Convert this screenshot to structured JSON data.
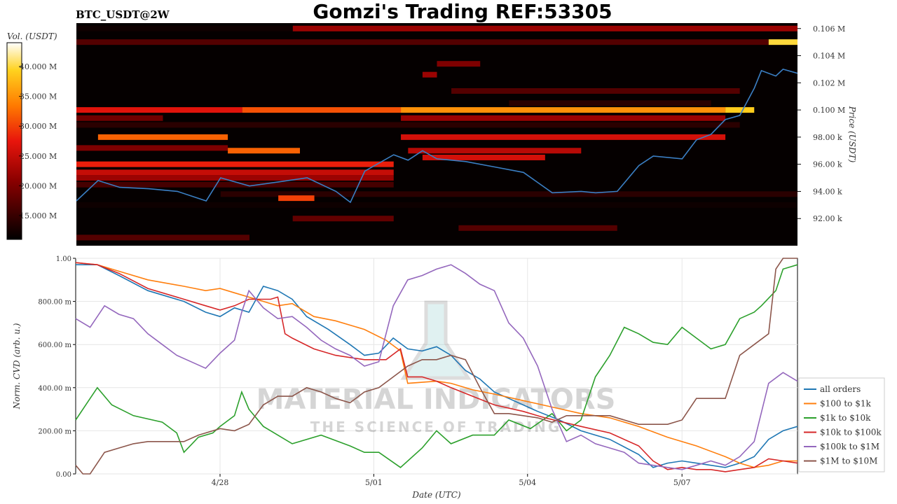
{
  "title": "Gomzi's Trading REF:53305",
  "watermark": {
    "line1": "MATERIAL INDICATORS",
    "line2": "THE SCIENCE OF TRADING"
  },
  "chart_data": [
    {
      "type": "heatmap",
      "pair_label": "BTC_USDT@2W",
      "ylabel": "Price (USDT)",
      "yticks": [
        "0.106 M",
        "0.104 M",
        "0.102 M",
        "0.100 M",
        "98.00 k",
        "96.00 k",
        "94.00 k",
        "92.00 k"
      ],
      "ytick_values": [
        106000,
        104000,
        102000,
        100000,
        98000,
        96000,
        94000,
        92000
      ],
      "ylim": [
        90000,
        106400
      ],
      "colorbar": {
        "label": "Vol. (USDT)",
        "ticks": [
          "40.000 M",
          "35.000 M",
          "30.000 M",
          "25.000 M",
          "20.000 M",
          "15.000 M"
        ],
        "tick_values": [
          40,
          35,
          30,
          25,
          20,
          15
        ],
        "range": [
          11,
          44
        ],
        "colors": [
          "#000000",
          "#8b0000",
          "#e8150c",
          "#ff7a00",
          "#ffd21e",
          "#ffffff"
        ]
      },
      "price_series": {
        "color": "#3b7fc4",
        "x": [
          0,
          0.03,
          0.06,
          0.1,
          0.14,
          0.18,
          0.2,
          0.24,
          0.28,
          0.32,
          0.36,
          0.38,
          0.4,
          0.44,
          0.46,
          0.48,
          0.5,
          0.54,
          0.58,
          0.62,
          0.66,
          0.7,
          0.72,
          0.75,
          0.78,
          0.8,
          0.84,
          0.86,
          0.88,
          0.9,
          0.92,
          0.94,
          0.95,
          0.97,
          0.98,
          1.0
        ],
        "y": [
          93300,
          94800,
          94300,
          94200,
          94000,
          93300,
          95000,
          94400,
          94700,
          95000,
          94000,
          93200,
          95500,
          96700,
          96300,
          97000,
          96400,
          96200,
          95800,
          95400,
          93900,
          94000,
          93900,
          94000,
          95900,
          96600,
          96400,
          97800,
          98200,
          99300,
          99600,
          101600,
          102900,
          102500,
          103000,
          102700
        ]
      },
      "bands": [
        {
          "price": 106000,
          "x0": 0.3,
          "x1": 1.0,
          "vol": 22
        },
        {
          "price": 106000,
          "x0": 0.0,
          "x1": 0.3,
          "vol": 12
        },
        {
          "price": 105000,
          "x0": 0.0,
          "x1": 0.96,
          "vol": 17
        },
        {
          "price": 105000,
          "x0": 0.96,
          "x1": 1.0,
          "vol": 40
        },
        {
          "price": 103400,
          "x0": 0.5,
          "x1": 0.56,
          "vol": 20
        },
        {
          "price": 102600,
          "x0": 0.48,
          "x1": 0.5,
          "vol": 22
        },
        {
          "price": 101400,
          "x0": 0.52,
          "x1": 0.92,
          "vol": 17
        },
        {
          "price": 100500,
          "x0": 0.6,
          "x1": 0.88,
          "vol": 14
        },
        {
          "price": 100000,
          "x0": 0.0,
          "x1": 0.23,
          "vol": 27
        },
        {
          "price": 100000,
          "x0": 0.23,
          "x1": 0.45,
          "vol": 31
        },
        {
          "price": 100000,
          "x0": 0.45,
          "x1": 0.9,
          "vol": 35
        },
        {
          "price": 100000,
          "x0": 0.9,
          "x1": 0.94,
          "vol": 39
        },
        {
          "price": 99400,
          "x0": 0.0,
          "x1": 0.12,
          "vol": 19
        },
        {
          "price": 99400,
          "x0": 0.45,
          "x1": 0.9,
          "vol": 22
        },
        {
          "price": 98900,
          "x0": 0.0,
          "x1": 0.92,
          "vol": 14
        },
        {
          "price": 98000,
          "x0": 0.03,
          "x1": 0.21,
          "vol": 32
        },
        {
          "price": 98000,
          "x0": 0.45,
          "x1": 0.9,
          "vol": 26
        },
        {
          "price": 97200,
          "x0": 0.0,
          "x1": 0.21,
          "vol": 20
        },
        {
          "price": 97000,
          "x0": 0.21,
          "x1": 0.31,
          "vol": 32
        },
        {
          "price": 97000,
          "x0": 0.46,
          "x1": 0.7,
          "vol": 24
        },
        {
          "price": 96500,
          "x0": 0.48,
          "x1": 0.65,
          "vol": 26
        },
        {
          "price": 96000,
          "x0": 0.0,
          "x1": 0.44,
          "vol": 28
        },
        {
          "price": 95400,
          "x0": 0.0,
          "x1": 0.44,
          "vol": 25
        },
        {
          "price": 95000,
          "x0": 0.0,
          "x1": 0.44,
          "vol": 22
        },
        {
          "price": 94500,
          "x0": 0.0,
          "x1": 0.44,
          "vol": 16
        },
        {
          "price": 93800,
          "x0": 0.2,
          "x1": 1.0,
          "vol": 14
        },
        {
          "price": 93500,
          "x0": 0.28,
          "x1": 0.33,
          "vol": 30
        },
        {
          "price": 93000,
          "x0": 0.0,
          "x1": 1.0,
          "vol": 12
        },
        {
          "price": 92000,
          "x0": 0.3,
          "x1": 0.44,
          "vol": 18
        },
        {
          "price": 91300,
          "x0": 0.53,
          "x1": 0.75,
          "vol": 17
        },
        {
          "price": 90600,
          "x0": 0.0,
          "x1": 0.24,
          "vol": 17
        }
      ]
    },
    {
      "type": "line",
      "xlabel": "Date (UTC)",
      "ylabel": "Norm. CVD (arb. u.)",
      "xticks": [
        "4/28",
        "5/01",
        "5/04",
        "5/07"
      ],
      "xtick_positions": [
        0.2,
        0.413,
        0.626,
        0.84
      ],
      "xlim": [
        0,
        1
      ],
      "yticks": [
        "1.00",
        "800.00 m",
        "600.00 m",
        "400.00 m",
        "200.00 m",
        "0.00"
      ],
      "ytick_values": [
        1.0,
        0.8,
        0.6,
        0.4,
        0.2,
        0.0
      ],
      "ylim": [
        0,
        1
      ],
      "grid": true,
      "legend_placement": "right",
      "series": [
        {
          "name": "all orders",
          "color": "#1f77b4",
          "x": [
            0,
            0.03,
            0.06,
            0.1,
            0.15,
            0.18,
            0.2,
            0.22,
            0.24,
            0.26,
            0.28,
            0.3,
            0.32,
            0.35,
            0.38,
            0.4,
            0.42,
            0.44,
            0.46,
            0.48,
            0.5,
            0.52,
            0.54,
            0.56,
            0.58,
            0.6,
            0.64,
            0.67,
            0.7,
            0.74,
            0.78,
            0.8,
            0.82,
            0.84,
            0.86,
            0.88,
            0.9,
            0.92,
            0.94,
            0.96,
            0.98,
            1.0
          ],
          "x_note": "fraction of time range",
          "y": [
            0.97,
            0.97,
            0.92,
            0.85,
            0.8,
            0.75,
            0.73,
            0.77,
            0.75,
            0.87,
            0.85,
            0.81,
            0.73,
            0.67,
            0.6,
            0.55,
            0.56,
            0.63,
            0.58,
            0.57,
            0.59,
            0.55,
            0.48,
            0.44,
            0.38,
            0.35,
            0.29,
            0.25,
            0.2,
            0.16,
            0.09,
            0.03,
            0.05,
            0.06,
            0.05,
            0.04,
            0.03,
            0.05,
            0.08,
            0.16,
            0.2,
            0.22
          ]
        },
        {
          "name": "$100 to $1k",
          "color": "#ff7f0e",
          "x": [
            0,
            0.03,
            0.06,
            0.1,
            0.15,
            0.18,
            0.2,
            0.22,
            0.25,
            0.28,
            0.3,
            0.33,
            0.36,
            0.4,
            0.43,
            0.45,
            0.46,
            0.5,
            0.52,
            0.55,
            0.58,
            0.62,
            0.66,
            0.7,
            0.74,
            0.78,
            0.82,
            0.86,
            0.9,
            0.92,
            0.94,
            0.96,
            0.98,
            1.0
          ],
          "y": [
            0.98,
            0.97,
            0.94,
            0.9,
            0.87,
            0.85,
            0.86,
            0.84,
            0.81,
            0.78,
            0.79,
            0.73,
            0.71,
            0.67,
            0.62,
            0.57,
            0.42,
            0.43,
            0.42,
            0.39,
            0.37,
            0.34,
            0.31,
            0.28,
            0.26,
            0.22,
            0.17,
            0.13,
            0.08,
            0.05,
            0.03,
            0.04,
            0.06,
            0.06
          ]
        },
        {
          "name": "$1k to $10k",
          "color": "#2ca02c",
          "x": [
            0,
            0.02,
            0.03,
            0.05,
            0.08,
            0.12,
            0.14,
            0.15,
            0.17,
            0.19,
            0.2,
            0.22,
            0.23,
            0.24,
            0.26,
            0.28,
            0.3,
            0.34,
            0.38,
            0.4,
            0.42,
            0.45,
            0.48,
            0.5,
            0.52,
            0.55,
            0.58,
            0.6,
            0.63,
            0.66,
            0.68,
            0.7,
            0.72,
            0.74,
            0.76,
            0.78,
            0.8,
            0.82,
            0.84,
            0.86,
            0.88,
            0.9,
            0.92,
            0.94,
            0.95,
            0.97,
            0.98,
            1.0
          ],
          "y": [
            0.25,
            0.35,
            0.4,
            0.32,
            0.27,
            0.24,
            0.19,
            0.1,
            0.17,
            0.19,
            0.22,
            0.27,
            0.38,
            0.3,
            0.22,
            0.18,
            0.14,
            0.18,
            0.13,
            0.1,
            0.1,
            0.03,
            0.12,
            0.2,
            0.14,
            0.18,
            0.18,
            0.25,
            0.21,
            0.28,
            0.2,
            0.25,
            0.45,
            0.55,
            0.68,
            0.65,
            0.61,
            0.6,
            0.68,
            0.63,
            0.58,
            0.6,
            0.72,
            0.75,
            0.78,
            0.85,
            0.95,
            0.97
          ]
        },
        {
          "name": "$10k to $100k",
          "color": "#d62728",
          "x": [
            0,
            0.03,
            0.06,
            0.1,
            0.15,
            0.18,
            0.2,
            0.22,
            0.24,
            0.27,
            0.28,
            0.29,
            0.3,
            0.33,
            0.36,
            0.4,
            0.43,
            0.45,
            0.46,
            0.48,
            0.5,
            0.52,
            0.55,
            0.58,
            0.62,
            0.65,
            0.7,
            0.74,
            0.78,
            0.8,
            0.82,
            0.84,
            0.86,
            0.88,
            0.9,
            0.92,
            0.94,
            0.96,
            0.98,
            1.0
          ],
          "y": [
            0.98,
            0.97,
            0.93,
            0.86,
            0.81,
            0.78,
            0.76,
            0.78,
            0.81,
            0.81,
            0.82,
            0.65,
            0.63,
            0.58,
            0.55,
            0.53,
            0.53,
            0.58,
            0.45,
            0.45,
            0.43,
            0.4,
            0.36,
            0.32,
            0.29,
            0.26,
            0.22,
            0.19,
            0.13,
            0.06,
            0.02,
            0.03,
            0.02,
            0.02,
            0.01,
            0.02,
            0.03,
            0.07,
            0.06,
            0.05
          ]
        },
        {
          "name": "$100k to $1M",
          "color": "#9467bd",
          "x": [
            0,
            0.02,
            0.04,
            0.06,
            0.08,
            0.1,
            0.12,
            0.14,
            0.16,
            0.18,
            0.2,
            0.22,
            0.23,
            0.24,
            0.26,
            0.28,
            0.3,
            0.32,
            0.34,
            0.36,
            0.38,
            0.4,
            0.42,
            0.44,
            0.46,
            0.48,
            0.5,
            0.52,
            0.54,
            0.56,
            0.58,
            0.6,
            0.62,
            0.64,
            0.66,
            0.68,
            0.7,
            0.72,
            0.74,
            0.76,
            0.78,
            0.8,
            0.82,
            0.84,
            0.86,
            0.88,
            0.9,
            0.92,
            0.94,
            0.96,
            0.98,
            1.0
          ],
          "y": [
            0.72,
            0.68,
            0.78,
            0.74,
            0.72,
            0.65,
            0.6,
            0.55,
            0.52,
            0.49,
            0.56,
            0.62,
            0.75,
            0.85,
            0.77,
            0.72,
            0.73,
            0.68,
            0.62,
            0.58,
            0.55,
            0.5,
            0.52,
            0.78,
            0.9,
            0.92,
            0.95,
            0.97,
            0.93,
            0.88,
            0.85,
            0.7,
            0.63,
            0.5,
            0.3,
            0.15,
            0.18,
            0.14,
            0.12,
            0.1,
            0.05,
            0.04,
            0.03,
            0.02,
            0.04,
            0.06,
            0.04,
            0.08,
            0.15,
            0.42,
            0.47,
            0.43
          ]
        },
        {
          "name": "$1M to $10M",
          "color": "#8c564b",
          "x": [
            0,
            0.01,
            0.02,
            0.03,
            0.04,
            0.06,
            0.08,
            0.1,
            0.13,
            0.15,
            0.17,
            0.2,
            0.22,
            0.24,
            0.26,
            0.28,
            0.3,
            0.32,
            0.34,
            0.36,
            0.38,
            0.4,
            0.42,
            0.44,
            0.46,
            0.48,
            0.5,
            0.52,
            0.54,
            0.56,
            0.58,
            0.6,
            0.62,
            0.64,
            0.66,
            0.68,
            0.7,
            0.72,
            0.74,
            0.76,
            0.78,
            0.8,
            0.82,
            0.84,
            0.86,
            0.88,
            0.9,
            0.92,
            0.94,
            0.96,
            0.97,
            0.98,
            1.0
          ],
          "y": [
            0.04,
            0.0,
            0.0,
            0.05,
            0.1,
            0.12,
            0.14,
            0.15,
            0.15,
            0.15,
            0.18,
            0.21,
            0.2,
            0.23,
            0.32,
            0.36,
            0.36,
            0.4,
            0.38,
            0.35,
            0.33,
            0.38,
            0.4,
            0.45,
            0.5,
            0.53,
            0.53,
            0.55,
            0.53,
            0.4,
            0.28,
            0.28,
            0.27,
            0.26,
            0.24,
            0.27,
            0.27,
            0.27,
            0.27,
            0.25,
            0.23,
            0.23,
            0.23,
            0.25,
            0.35,
            0.35,
            0.35,
            0.55,
            0.6,
            0.65,
            0.95,
            1.0,
            1.0
          ]
        }
      ]
    }
  ]
}
